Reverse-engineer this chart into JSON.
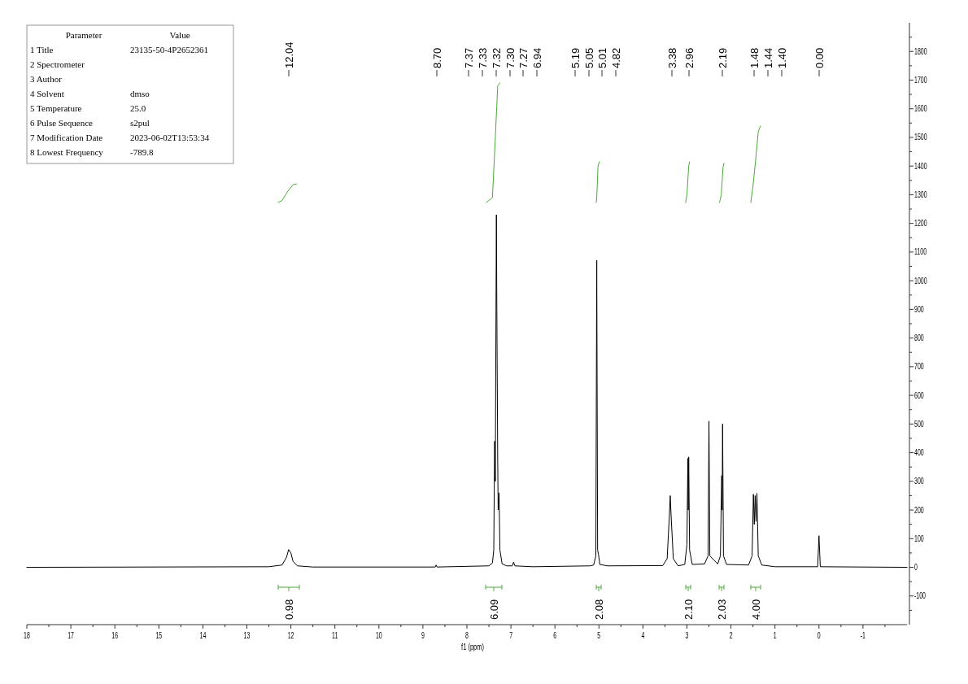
{
  "chart_data": [
    {
      "type": "line",
      "xlabel": "f1 (ppm)",
      "xlim": [
        18,
        -2
      ],
      "ylim": [
        -200,
        1900
      ],
      "xticks": [
        18,
        {
          "value": 17.5,
          "label": null
        },
        17,
        {
          "value": 16.5,
          "label": null
        },
        16,
        {
          "value": 15.5,
          "label": null
        },
        15,
        {
          "value": 14.5,
          "label": null
        },
        14,
        {
          "value": 13.5,
          "label": null
        },
        13,
        {
          "value": 12.5,
          "label": null
        },
        12,
        {
          "value": 11.5,
          "label": null
        },
        11,
        {
          "value": 10.5,
          "label": null
        },
        10,
        {
          "value": 9.5,
          "label": null
        },
        9,
        {
          "value": 8.5,
          "label": null
        },
        8,
        {
          "value": 7.5,
          "label": null
        },
        7,
        {
          "value": 6.5,
          "label": null
        },
        6,
        {
          "value": 5.5,
          "label": null
        },
        5,
        {
          "value": 4.5,
          "label": null
        },
        4,
        {
          "value": 3.5,
          "label": null
        },
        3,
        {
          "value": 2.5,
          "label": null
        },
        2,
        {
          "value": 1.5,
          "label": null
        },
        1,
        {
          "value": 0.5,
          "label": null
        },
        0,
        {
          "value": -0.5,
          "label": null
        },
        -1,
        {
          "value": -1.5,
          "label": null
        }
      ],
      "yticks": [
        {
          "value": -150,
          "label": null
        },
        -100,
        {
          "value": -50,
          "label": null
        },
        0,
        {
          "value": 50,
          "label": null
        },
        100,
        {
          "value": 150,
          "label": null
        },
        200,
        {
          "value": 250,
          "label": null
        },
        300,
        {
          "value": 350,
          "label": null
        },
        400,
        {
          "value": 450,
          "label": null
        },
        500,
        {
          "value": 550,
          "label": null
        },
        600,
        {
          "value": 650,
          "label": null
        },
        700,
        {
          "value": 750,
          "label": null
        },
        800,
        {
          "value": 850,
          "label": null
        },
        900,
        {
          "value": 950,
          "label": null
        },
        1000,
        {
          "value": 1050,
          "label": null
        },
        1100,
        {
          "value": 1150,
          "label": null
        },
        1200,
        {
          "value": 1250,
          "label": null
        },
        1300,
        {
          "value": 1350,
          "label": null
        },
        1400,
        {
          "value": 1450,
          "label": null
        },
        1500,
        {
          "value": 1550,
          "label": null
        },
        1600,
        {
          "value": 1650,
          "label": null
        },
        1700,
        {
          "value": 1750,
          "label": null
        },
        1800,
        {
          "value": 1850,
          "label": null
        }
      ],
      "grid": false,
      "marker": "none",
      "line_style": "solid",
      "series": [
        {
          "color": "#000000",
          "x": [
            18,
            12.5,
            12.2,
            12.1,
            12.05,
            12.0,
            11.95,
            11.85,
            11.5,
            8.72,
            8.7,
            8.68,
            7.5,
            7.42,
            7.39,
            7.37,
            7.355,
            7.33,
            7.32,
            7.3,
            7.29,
            7.27,
            7.25,
            7.2,
            7.1,
            6.97,
            6.94,
            6.91,
            6.5,
            5.2,
            5.12,
            5.07,
            5.05,
            5.03,
            5.01,
            4.98,
            4.8,
            3.55,
            3.45,
            3.4,
            3.38,
            3.36,
            3.31,
            3.2,
            3.05,
            3.0,
            2.98,
            2.97,
            2.96,
            2.94,
            2.88,
            2.6,
            2.52,
            2.5,
            2.48,
            2.3,
            2.24,
            2.21,
            2.2,
            2.19,
            2.17,
            2.1,
            1.6,
            1.52,
            1.49,
            1.47,
            1.45,
            1.43,
            1.41,
            1.38,
            1.3,
            1.0,
            0.03,
            0.0,
            -0.03,
            -2
          ],
          "values": [
            0,
            2,
            8,
            35,
            62,
            50,
            20,
            5,
            1,
            1,
            8,
            1,
            5,
            15,
            60,
            440,
            300,
            1230,
            900,
            370,
            200,
            260,
            60,
            12,
            5,
            5,
            18,
            5,
            2,
            5,
            8,
            40,
            1071,
            60,
            45,
            10,
            5,
            6,
            30,
            180,
            250,
            180,
            30,
            5,
            10,
            80,
            380,
            200,
            385,
            60,
            10,
            12,
            40,
            510,
            40,
            12,
            40,
            320,
            200,
            500,
            40,
            10,
            8,
            40,
            255,
            150,
            250,
            160,
            258,
            40,
            8,
            2,
            2,
            110,
            2,
            0
          ]
        },
        {
          "color": "#4caa3a",
          "x": [
            12.29,
            12.2,
            12.08,
            11.95,
            11.87
          ],
          "values": [
            1273,
            1280,
            1310,
            1335,
            1338
          ]
        },
        {
          "color": "#4caa3a",
          "x": [
            7.56,
            7.42,
            7.36,
            7.3,
            7.25
          ],
          "values": [
            1273,
            1290,
            1480,
            1680,
            1690
          ]
        },
        {
          "color": "#4caa3a",
          "x": [
            5.06,
            5.05,
            5.02,
            4.99
          ],
          "values": [
            1273,
            1290,
            1400,
            1415
          ]
        },
        {
          "color": "#4caa3a",
          "x": [
            3.03,
            3.0,
            2.96,
            2.94
          ],
          "values": [
            1273,
            1300,
            1400,
            1415
          ]
        },
        {
          "color": "#4caa3a",
          "x": [
            2.26,
            2.22,
            2.18,
            2.16
          ],
          "values": [
            1273,
            1300,
            1395,
            1410
          ]
        },
        {
          "color": "#4caa3a",
          "x": [
            1.55,
            1.5,
            1.44,
            1.38,
            1.33
          ],
          "values": [
            1273,
            1330,
            1420,
            1520,
            1540
          ]
        }
      ],
      "annotations": [
        "12.04",
        "8.70",
        "7.37",
        "7.33",
        "7.32",
        "7.30",
        "7.27",
        "6.94",
        "5.19",
        "5.05",
        "5.01",
        "4.82",
        "3.38",
        "2.96",
        "2.19",
        "1.48",
        "1.44",
        "1.40",
        "0.00",
        "0.98",
        "6.09",
        "2.08",
        "2.10",
        "2.03",
        "4.00"
      ]
    },
    {
      "type": "other",
      "annotations": [
        "Parameter",
        "Value",
        "1 Title",
        "23135-50-4P2652361",
        "2 Spectrometer",
        null,
        "3 Author",
        null,
        "4 Solvent",
        "dmso",
        "5 Temperature",
        "25.0",
        "6 Pulse Sequence",
        "s2pul",
        "7 Modification Date",
        "2023-06-02T13:53:34",
        "8 Lowest Frequency",
        "-789.8"
      ]
    }
  ]
}
